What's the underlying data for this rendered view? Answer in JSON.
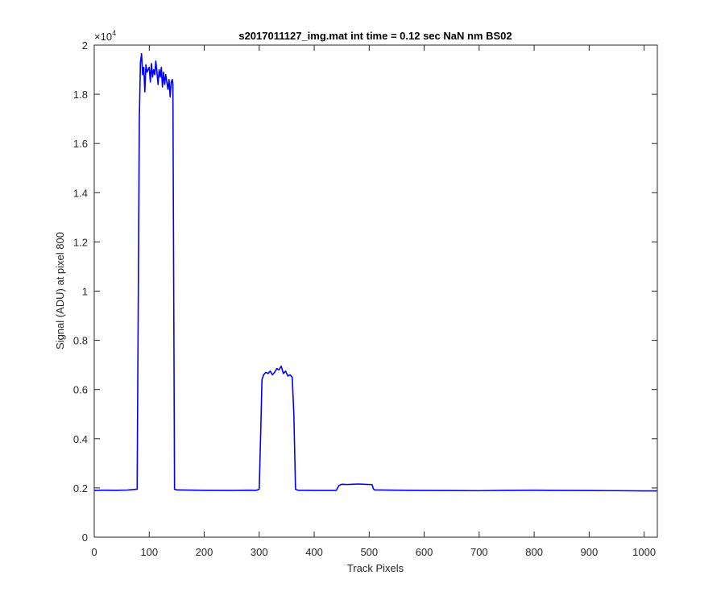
{
  "chart_data": {
    "type": "line",
    "title": "s2017011127_img.mat int time = 0.12 sec  NaN nm BS02",
    "xlabel": "Track Pixels",
    "ylabel": "Signal (ADU) at pixel 800",
    "xlim": [
      0,
      1024
    ],
    "ylim": [
      0,
      20000
    ],
    "y_exponent_base": "×10",
    "y_exponent_power": "4",
    "x_ticks": [
      0,
      100,
      200,
      300,
      400,
      500,
      600,
      700,
      800,
      900,
      1000
    ],
    "x_tick_labels": [
      "0",
      "100",
      "200",
      "300",
      "400",
      "500",
      "600",
      "700",
      "800",
      "900",
      "1000"
    ],
    "y_ticks": [
      0,
      2000,
      4000,
      6000,
      8000,
      10000,
      12000,
      14000,
      16000,
      18000,
      20000
    ],
    "y_tick_labels": [
      "0",
      "0.2",
      "0.4",
      "0.6",
      "0.8",
      "1",
      "1.2",
      "1.4",
      "1.6",
      "1.8",
      "2"
    ],
    "grid": false,
    "series": [
      {
        "color": "#0000ff",
        "x": [
          0,
          20,
          40,
          60,
          78,
          82,
          84,
          86,
          88,
          90,
          92,
          94,
          96,
          98,
          100,
          102,
          104,
          106,
          108,
          110,
          112,
          114,
          116,
          118,
          120,
          122,
          124,
          126,
          128,
          130,
          132,
          134,
          136,
          138,
          140,
          142,
          143,
          146,
          150,
          200,
          250,
          280,
          295,
          300,
          303,
          305,
          308,
          312,
          316,
          320,
          324,
          328,
          332,
          336,
          340,
          344,
          348,
          352,
          356,
          360,
          363,
          366,
          370,
          400,
          440,
          445,
          448,
          450,
          460,
          470,
          480,
          490,
          500,
          505,
          508,
          510,
          550,
          600,
          650,
          700,
          750,
          800,
          850,
          900,
          950,
          1000,
          1024
        ],
        "y": [
          1900,
          1910,
          1905,
          1915,
          1950,
          17000,
          19300,
          19650,
          18800,
          19100,
          18100,
          19200,
          18900,
          19000,
          19100,
          18500,
          19250,
          18700,
          19000,
          18800,
          19350,
          18900,
          18400,
          19000,
          18700,
          19100,
          18300,
          18900,
          18400,
          18800,
          18500,
          18200,
          18600,
          17900,
          18500,
          18600,
          18400,
          1950,
          1920,
          1905,
          1900,
          1910,
          1905,
          1950,
          4500,
          6400,
          6600,
          6700,
          6650,
          6750,
          6600,
          6700,
          6850,
          6800,
          6950,
          6650,
          6750,
          6550,
          6600,
          6500,
          5000,
          1950,
          1910,
          1900,
          1900,
          2100,
          2130,
          2150,
          2140,
          2150,
          2160,
          2150,
          2140,
          2140,
          1950,
          1920,
          1910,
          1900,
          1895,
          1890,
          1905,
          1910,
          1900,
          1895,
          1890,
          1880,
          1880
        ]
      }
    ]
  }
}
